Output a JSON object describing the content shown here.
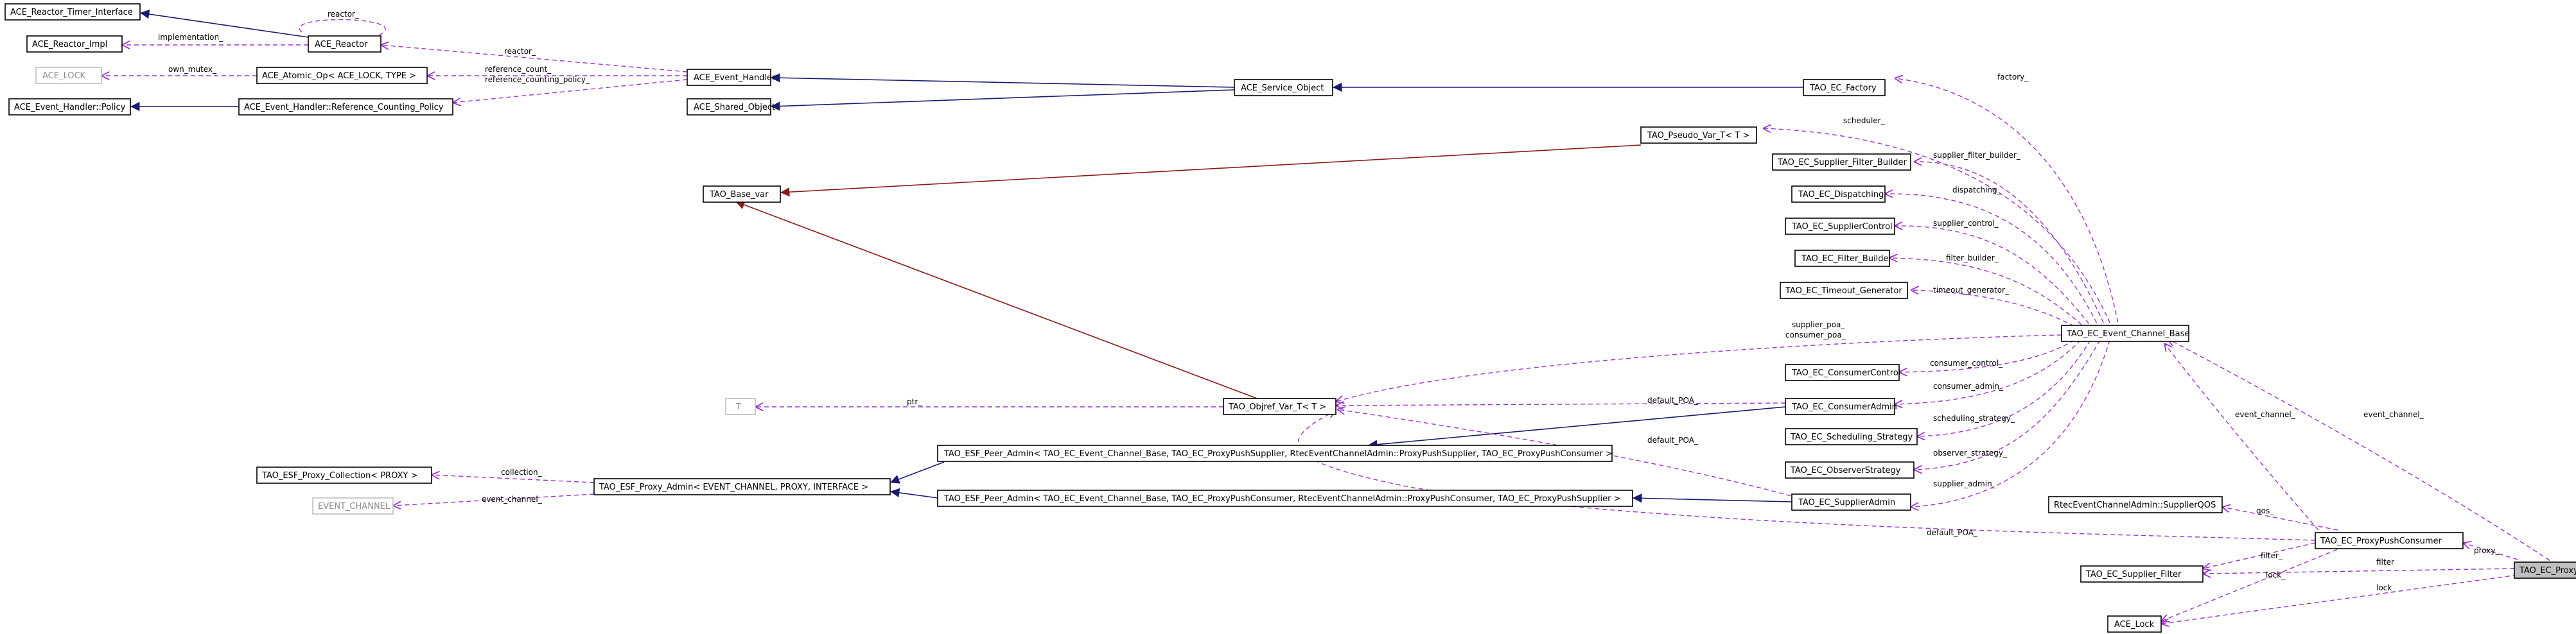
{
  "nodes": {
    "ace_reactor_timer_interface": "ACE_Reactor_Timer_Interface",
    "ace_reactor_impl": "ACE_Reactor_Impl",
    "ace_reactor": "ACE_Reactor",
    "ace_lock": "ACE_LOCK",
    "ace_atomic_op": "ACE_Atomic_Op< ACE_LOCK, TYPE >",
    "ace_event_handler_policy": "ACE_Event_Handler::Policy",
    "ace_event_handler_rcp": "ACE_Event_Handler::Reference_Counting_Policy",
    "ace_event_handler": "ACE_Event_Handler",
    "ace_shared_object": "ACE_Shared_Object",
    "ace_service_object": "ACE_Service_Object",
    "tao_ec_factory": "TAO_EC_Factory",
    "tao_pseudo_var": "TAO_Pseudo_Var_T< T >",
    "tao_ec_supplier_filter_builder": "TAO_EC_Supplier_Filter_Builder",
    "tao_base_var": "TAO_Base_var",
    "tao_ec_dispatching": "TAO_EC_Dispatching",
    "tao_ec_supplier_control": "TAO_EC_SupplierControl",
    "tao_ec_filter_builder": "TAO_EC_Filter_Builder",
    "tao_ec_timeout_generator": "TAO_EC_Timeout_Generator",
    "tao_ec_event_channel_base": "TAO_EC_Event_Channel_Base",
    "tao_ec_consumer_control": "TAO_EC_ConsumerControl",
    "t": "T",
    "tao_objref_var": "TAO_Objref_Var_T< T >",
    "tao_ec_consumer_admin": "TAO_EC_ConsumerAdmin",
    "tao_esf_peer_admin_supplier": "TAO_ESF_Peer_Admin< TAO_EC_Event_Channel_Base, TAO_EC_ProxyPushSupplier, RtecEventChannelAdmin::ProxyPushSupplier, TAO_EC_ProxyPushConsumer >",
    "tao_ec_scheduling_strategy": "TAO_EC_Scheduling_Strategy",
    "tao_esf_proxy_collection": "TAO_ESF_Proxy_Collection< PROXY >",
    "tao_ec_observer_strategy": "TAO_EC_ObserverStrategy",
    "tao_esf_proxy_admin": "TAO_ESF_Proxy_Admin< EVENT_CHANNEL, PROXY, INTERFACE >",
    "tao_esf_peer_admin_consumer": "TAO_ESF_Peer_Admin< TAO_EC_Event_Channel_Base, TAO_EC_ProxyPushConsumer, RtecEventChannelAdmin::ProxyPushConsumer, TAO_EC_ProxyPushSupplier >",
    "tao_ec_supplier_admin": "TAO_EC_SupplierAdmin",
    "event_channel": "EVENT_CHANNEL",
    "rtec_supplier_qos": "RtecEventChannelAdmin::SupplierQOS",
    "tao_ec_proxy_push_consumer": "TAO_EC_ProxyPushConsumer",
    "tao_ec_supplier_filter": "TAO_EC_Supplier_Filter",
    "tao_ec_proxy_push_consumer_guard": "TAO_EC_ProxyPushConsumer_Guard",
    "ace_lock_class": "ACE_Lock"
  },
  "edge_labels": {
    "reactor_self": "reactor_",
    "implementation": "implementation_",
    "reactor": "reactor_",
    "own_mutex": "own_mutex_",
    "reference_count": "reference_count_",
    "reference_counting_policy": "reference_counting_policy_",
    "factory": "factory_",
    "scheduler": "scheduler_",
    "supplier_filter_builder": "supplier_filter_builder_",
    "dispatching": "dispatching_",
    "supplier_control": "supplier_control_",
    "filter_builder": "filter_builder_",
    "timeout_generator": "timeout_generator_",
    "supplier_poa": "supplier_poa_",
    "consumer_poa": "consumer_poa_",
    "consumer_control": "consumer_control_",
    "consumer_admin": "consumer_admin_",
    "ptr": "ptr_",
    "default_poa_1": "default_POA_",
    "scheduling_strategy": "scheduling_strategy_",
    "default_poa_2": "default_POA_",
    "collection": "collection_",
    "observer_strategy": "observer_strategy_",
    "event_channel_1": "event_channel_",
    "supplier_admin": "supplier_admin_",
    "event_channel_2": "event_channel_",
    "event_channel_3": "event_channel_",
    "qos": "qos_",
    "default_poa_3": "default_POA_",
    "proxy": "proxy_",
    "filter_1": "filter_",
    "filter_2": "filter",
    "lock_1": "lock_",
    "lock_2": "lock_"
  },
  "colors": {
    "inheritance": "#191970",
    "template_instance": "#8b1a1a",
    "usage": "#9a32cd",
    "focus_fill": "#bfbfbf"
  }
}
